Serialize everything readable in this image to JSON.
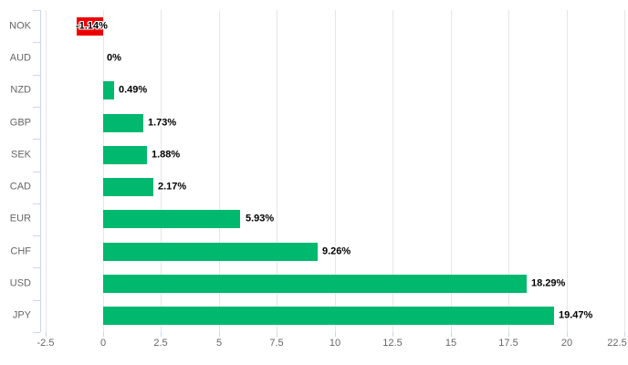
{
  "chart_data": {
    "type": "bar",
    "orientation": "horizontal",
    "title": "",
    "xlabel": "",
    "ylabel": "",
    "categories": [
      "NOK",
      "AUD",
      "NZD",
      "GBP",
      "SEK",
      "CAD",
      "EUR",
      "CHF",
      "USD",
      "JPY"
    ],
    "values": [
      -1.14,
      0,
      0.49,
      1.73,
      1.88,
      2.17,
      5.93,
      9.26,
      18.29,
      19.47
    ],
    "value_labels": [
      "-1.14%",
      "0%",
      "0.49%",
      "1.73%",
      "1.88%",
      "2.17%",
      "5.93%",
      "9.26%",
      "18.29%",
      "19.47%"
    ],
    "x_ticks": [
      -2.5,
      0,
      2.5,
      5,
      7.5,
      10,
      12.5,
      15,
      17.5,
      20,
      22.5
    ],
    "x_tick_labels": [
      "-2.5",
      "0",
      "2.5",
      "5",
      "7.5",
      "10",
      "12.5",
      "15",
      "17.5",
      "20",
      "22.5"
    ],
    "xlim": [
      -2.72,
      22.5
    ],
    "grid": true,
    "legend": false,
    "colors": {
      "positive_bar": "#00b86e",
      "negative_bar": "#ee0000",
      "gridline": "#e6e6e6",
      "axis_line": "#ccd6eb",
      "tick_mark": "#ccd6eb",
      "axis_label_text": "#666666",
      "data_label_text": "#000000",
      "background": "#ffffff"
    }
  }
}
